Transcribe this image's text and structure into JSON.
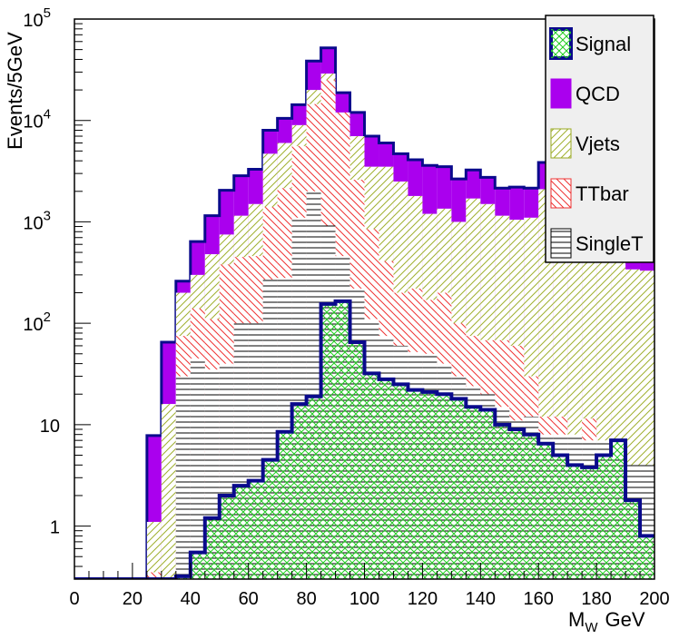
{
  "chart_data": {
    "type": "stacked-histogram",
    "xlabel": "M",
    "xlabel_sub": "W",
    "xlabel_unit": "GeV",
    "ylabel": "Events/5GeV",
    "yscale": "log",
    "xlim": [
      0,
      200
    ],
    "ylim": [
      0.3,
      100000
    ],
    "bin_width": 5,
    "x_ticks": [
      "0",
      "20",
      "40",
      "60",
      "80",
      "100",
      "120",
      "140",
      "160",
      "180",
      "200"
    ],
    "y_ticks": [
      {
        "value": 1,
        "label": "1"
      },
      {
        "value": 10,
        "label": "10"
      },
      {
        "value": 100,
        "label": "10",
        "exp": "2"
      },
      {
        "value": 1000,
        "label": "10",
        "exp": "3"
      },
      {
        "value": 10000,
        "label": "10",
        "exp": "4"
      },
      {
        "value": 100000,
        "label": "10",
        "exp": "5"
      }
    ],
    "legend": [
      {
        "name": "Signal",
        "key": "signal"
      },
      {
        "name": "QCD",
        "key": "qcd"
      },
      {
        "name": "Vjets",
        "key": "vjets"
      },
      {
        "name": "TTbar",
        "key": "ttbar"
      },
      {
        "name": "SingleT",
        "key": "singlet"
      }
    ],
    "stack_totals": {
      "qcd": [
        0,
        0,
        0,
        0,
        0,
        7.8,
        65,
        260,
        640,
        1150,
        2050,
        2850,
        3300,
        8000,
        10500,
        14300,
        38500,
        52000,
        18800,
        12000,
        7000,
        6000,
        4700,
        4100,
        3600,
        3500,
        2650,
        3250,
        2750,
        2150,
        2200,
        2150,
        3850,
        3650,
        2650,
        2550,
        1950,
        1350,
        780,
        760
      ],
      "vjets": [
        0,
        0,
        0,
        0,
        0,
        1.1,
        16,
        200,
        300,
        480,
        750,
        1150,
        1500,
        4700,
        6000,
        9000,
        20000,
        29000,
        9000,
        7000,
        3500,
        3500,
        2500,
        1800,
        1200,
        1350,
        1000,
        1700,
        1500,
        1150,
        1050,
        1100,
        2100,
        1850,
        1500,
        1000,
        850,
        550,
        340,
        330
      ],
      "ttbar": [
        0,
        0,
        0,
        0,
        0,
        0.35,
        0.3,
        75,
        140,
        110,
        380,
        450,
        460,
        1400,
        2150,
        5600,
        14500,
        25000,
        12000,
        2600,
        850,
        410,
        200,
        220,
        170,
        200,
        100,
        75,
        68,
        68,
        60,
        30,
        12,
        12,
        7.5,
        11.5,
        5.5,
        6.5,
        3.6,
        3.6
      ],
      "singlet": [
        0,
        0,
        0,
        0,
        0,
        0,
        0,
        30,
        45,
        35,
        40,
        100,
        100,
        270,
        280,
        1100,
        2000,
        920,
        460,
        220,
        110,
        75,
        60,
        52,
        50,
        40,
        30,
        24,
        20,
        15,
        11,
        12,
        8,
        8,
        8,
        7,
        7,
        5,
        4,
        4
      ]
    },
    "signal": [
      0,
      0,
      0,
      0,
      0,
      0,
      0,
      0.32,
      0.55,
      1.2,
      2.0,
      2.5,
      2.8,
      4.5,
      8.5,
      16,
      19,
      155,
      165,
      65,
      32,
      28,
      25,
      22,
      21,
      20,
      18,
      15,
      14,
      10,
      9,
      8,
      6.5,
      5,
      4,
      3.8,
      5,
      7,
      1.8,
      0.8
    ]
  },
  "colors": {
    "signal_fill": "#22cc22",
    "signal_line": "#0a0a8c",
    "qcd": "#aa00ee",
    "vjets": "#99aa22",
    "ttbar": "#ee3333",
    "singlet": "#000000",
    "legend_bg": "#efefef"
  }
}
